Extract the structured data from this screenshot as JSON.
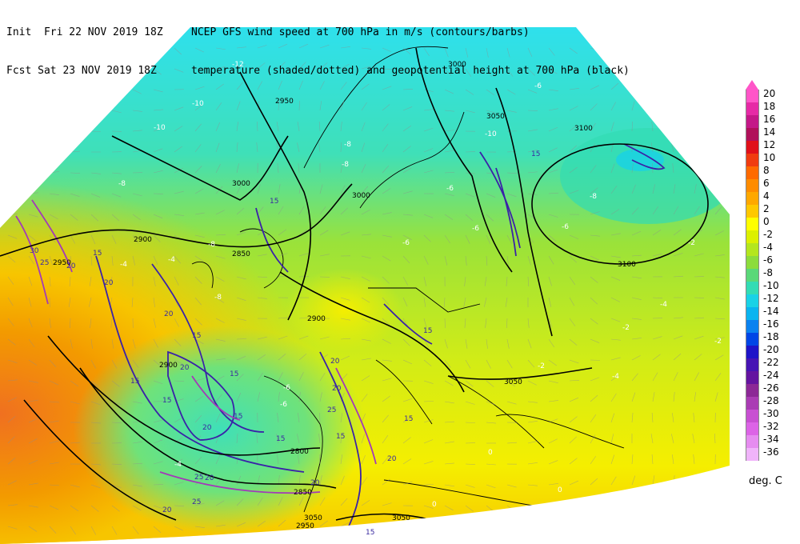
{
  "header": {
    "init": "Init  Fri 22 NOV 2019 18Z",
    "fcst": "Fcst Sat 23 NOV 2019 18Z",
    "title1": "NCEP GFS wind speed at 700 hPa in m/s (contours/barbs)",
    "title2": "temperature (shaded/dotted) and geopotential height at 700 hPa (black)"
  },
  "colors": {
    "sea_cold": "#2ee0ee",
    "cold": "#3fe0b8",
    "cool": "#6fe27a",
    "mild": "#9ae23a",
    "neutral": "#d2ec16",
    "warm": "#f5ee00",
    "warmer": "#f7c500",
    "hot": "#f39a00",
    "hotter": "#f07020",
    "wind_contour": "#3a22a8",
    "wind_contour_strong": "#a23ab8",
    "height": "#000000"
  },
  "colorbar": {
    "unit": "deg. C",
    "steps": [
      {
        "label": "20",
        "color": "#ff55c8"
      },
      {
        "label": "18",
        "color": "#e62aa6"
      },
      {
        "label": "16",
        "color": "#c41888"
      },
      {
        "label": "14",
        "color": "#b0105a"
      },
      {
        "label": "12",
        "color": "#e0101a"
      },
      {
        "label": "10",
        "color": "#f03c10"
      },
      {
        "label": "8",
        "color": "#ff6a00"
      },
      {
        "label": "6",
        "color": "#ff8c00"
      },
      {
        "label": "4",
        "color": "#ffa800"
      },
      {
        "label": "2",
        "color": "#ffc800"
      },
      {
        "label": "0",
        "color": "#ffff00"
      },
      {
        "label": "-2",
        "color": "#dcf000"
      },
      {
        "label": "-4",
        "color": "#b4e61e"
      },
      {
        "label": "-6",
        "color": "#8cdc3c"
      },
      {
        "label": "-8",
        "color": "#5ad878"
      },
      {
        "label": "-10",
        "color": "#32dcb4"
      },
      {
        "label": "-12",
        "color": "#19d2e6"
      },
      {
        "label": "-14",
        "color": "#0ab4f0"
      },
      {
        "label": "-16",
        "color": "#0a82f0"
      },
      {
        "label": "-18",
        "color": "#0046e6"
      },
      {
        "label": "-20",
        "color": "#1e14c8"
      },
      {
        "label": "-22",
        "color": "#4614b4"
      },
      {
        "label": "-24",
        "color": "#6414a0"
      },
      {
        "label": "-26",
        "color": "#8c2896"
      },
      {
        "label": "-28",
        "color": "#aa3cb4"
      },
      {
        "label": "-30",
        "color": "#c850d2"
      },
      {
        "label": "-32",
        "color": "#dc64e6"
      },
      {
        "label": "-34",
        "color": "#e68cf0"
      },
      {
        "label": "-36",
        "color": "#f0b4fa"
      }
    ]
  },
  "map_labels": {
    "heights": [
      "3000",
      "2950",
      "3050",
      "3100",
      "2900",
      "3000",
      "2850",
      "2950",
      "2900",
      "3050",
      "3100",
      "2900",
      "2800",
      "2850",
      "3050",
      "3000",
      "3050",
      "2950"
    ],
    "temps": [
      "-12",
      "-10",
      "-10",
      "-10",
      "-6",
      "-8",
      "-6",
      "-8",
      "-6",
      "-8",
      "-4",
      "-2",
      "-4",
      "-6",
      "-4",
      "-2",
      "-2",
      "0",
      "-8",
      "-6",
      "-4",
      "-8",
      "-8",
      "-2",
      "-4",
      "-6",
      "0",
      "0",
      "-6"
    ],
    "winds": [
      "15",
      "15",
      "20",
      "25",
      "30",
      "20",
      "15",
      "20",
      "15",
      "20",
      "20",
      "20",
      "15",
      "15",
      "15",
      "20",
      "25",
      "20",
      "15",
      "20",
      "15",
      "25",
      "15",
      "20",
      "15",
      "25",
      "15",
      "20",
      "15"
    ]
  }
}
